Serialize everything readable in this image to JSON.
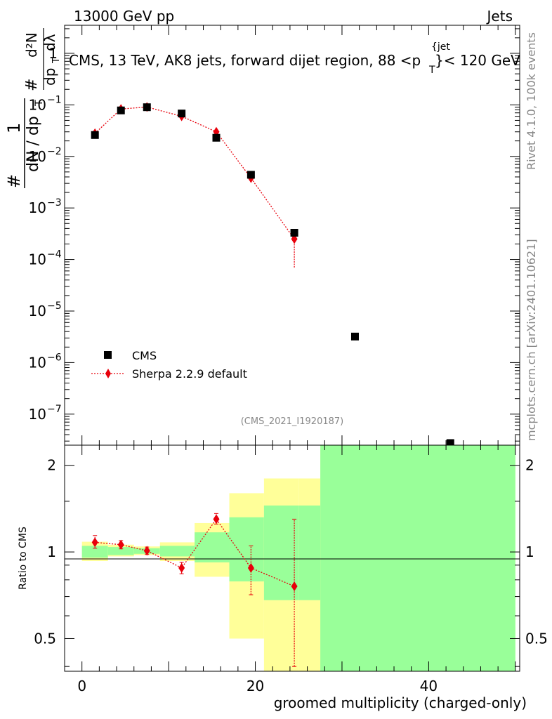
{
  "header": {
    "left": "13000 GeV pp",
    "right": "Jets"
  },
  "side_labels": {
    "rivet": "Rivet 4.1.0,  100k events",
    "mcplots": "mcplots.cern.ch [arXiv:2401.10621]"
  },
  "colors": {
    "data": "#000000",
    "mc": "#e8000b",
    "band_stat": "#99ff99",
    "band_total": "#ffff99"
  },
  "chart_data": [
    {
      "type": "scatter",
      "panel": "main",
      "title": "CMS, 13 TeV, AK8 jets, forward dijet region, 88 <p_T^{jet}< 120 GeV",
      "title_parts": {
        "main": "CMS, 13 TeV, AK8 jets, forward dijet region, 88 <p",
        "sup": "{jet",
        "sub": "T",
        "end": "}< 120 GeV"
      },
      "ylabel_parts": {
        "num_hash": "#",
        "num_one": "1",
        "den": "dN / dp",
        "den_sub": "T",
        "hash2": "#",
        "mid": "dp",
        "mid_sub": "T",
        "top": "d²N",
        "top_den": "dλ"
      },
      "yscale": "log",
      "xlim": [
        -2,
        50.5
      ],
      "ylim": [
        2.5e-08,
        3.5
      ],
      "ytick_labels": [
        {
          "value": 1,
          "base": "1",
          "exp": ""
        },
        {
          "value": 0.1,
          "base": "10",
          "exp": "−1"
        },
        {
          "value": 0.01,
          "base": "10",
          "exp": "−2"
        },
        {
          "value": 0.001,
          "base": "10",
          "exp": "−3"
        },
        {
          "value": 0.0001,
          "base": "10",
          "exp": "−4"
        },
        {
          "value": 1e-05,
          "base": "10",
          "exp": "−5"
        },
        {
          "value": 1e-06,
          "base": "10",
          "exp": "−6"
        },
        {
          "value": 1e-07,
          "base": "10",
          "exp": "−7"
        }
      ],
      "legend_position": "bottom-left",
      "series": [
        {
          "name": "CMS",
          "marker": "square",
          "x": [
            1.5,
            4.5,
            7.5,
            11.5,
            15.5,
            19.5,
            24.5,
            31.5,
            42.5
          ],
          "y": [
            0.026,
            0.078,
            0.09,
            0.068,
            0.023,
            0.0044,
            0.00033,
            3.2e-06,
            2.5e-08
          ]
        },
        {
          "name": "Sherpa 2.2.9 default",
          "marker": "diamond",
          "line": "dotted",
          "x": [
            1.5,
            4.5,
            7.5,
            11.5,
            15.5,
            19.5,
            24.5
          ],
          "y": [
            0.028,
            0.083,
            0.091,
            0.06,
            0.03,
            0.0038,
            0.00025
          ],
          "yerr_low": [
            0.001,
            0.002,
            0.002,
            0.002,
            0.001,
            0.0004,
            0.00018
          ],
          "yerr_high": [
            0.001,
            0.002,
            0.002,
            0.002,
            0.001,
            0.0004,
            8e-05
          ]
        }
      ],
      "watermark": "(CMS_2021_I1920187)"
    },
    {
      "type": "scatter",
      "panel": "ratio",
      "ylabel": "Ratio to CMS",
      "xlabel": "groomed multiplicity (charged-only)",
      "yscale": "log",
      "xlim": [
        -2,
        50.5
      ],
      "ylim": [
        0.385,
        2.35
      ],
      "xticks": [
        0,
        20,
        40
      ],
      "xtick_labels": [
        "0",
        "20",
        "40"
      ],
      "yticks": [
        0.5,
        1,
        2
      ],
      "ytick_labels": [
        "0.5",
        "1",
        "2"
      ],
      "bands": {
        "bin_edges": [
          0,
          3,
          6,
          9,
          13,
          17,
          21,
          25,
          27.5,
          50
        ],
        "total_low": [
          0.93,
          0.965,
          0.975,
          0.93,
          0.82,
          0.5,
          0.3,
          0.3,
          0.3
        ],
        "total_high": [
          1.085,
          1.06,
          1.045,
          1.08,
          1.26,
          1.6,
          1.8,
          1.8,
          2.4
        ],
        "stat_low": [
          0.955,
          0.975,
          0.985,
          0.965,
          0.92,
          0.79,
          0.68,
          0.68,
          0.3
        ],
        "stat_high": [
          1.05,
          1.04,
          1.03,
          1.05,
          1.17,
          1.32,
          1.45,
          1.45,
          2.4
        ]
      },
      "series": [
        {
          "name": "Sherpa 2.2.9 default",
          "marker": "diamond",
          "line": "dotted",
          "x": [
            1.5,
            4.5,
            7.5,
            11.5,
            15.5,
            19.5,
            24.5
          ],
          "y": [
            1.08,
            1.06,
            1.01,
            0.88,
            1.3,
            0.88,
            0.76
          ],
          "yerr_low": [
            0.05,
            0.035,
            0.03,
            0.04,
            0.05,
            0.17,
            0.36
          ],
          "yerr_high": [
            0.06,
            0.035,
            0.03,
            0.04,
            0.06,
            0.17,
            0.54
          ]
        }
      ]
    }
  ]
}
